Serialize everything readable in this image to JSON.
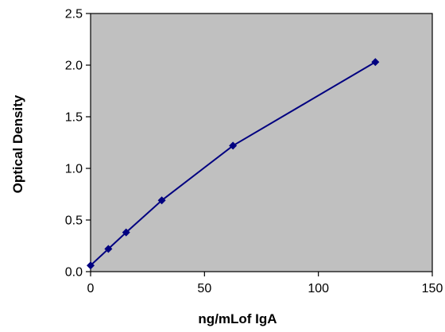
{
  "chart_data": {
    "type": "line",
    "title": "",
    "xlabel": "ng/mLof IgA",
    "ylabel": "Optical Density",
    "xlim": [
      0,
      150
    ],
    "ylim": [
      0,
      2.5
    ],
    "xticks": [
      0,
      50,
      100,
      150
    ],
    "yticks": [
      0.0,
      0.5,
      1.0,
      1.5,
      2.0,
      2.5
    ],
    "grid": false,
    "legend": "none",
    "plot_background": "#c0c0c0",
    "series_color": "#000080",
    "series": [
      {
        "x": [
          0,
          7.8,
          15.6,
          31.25,
          62.5,
          125
        ],
        "y": [
          0.06,
          0.22,
          0.38,
          0.69,
          1.22,
          2.03
        ]
      }
    ]
  }
}
